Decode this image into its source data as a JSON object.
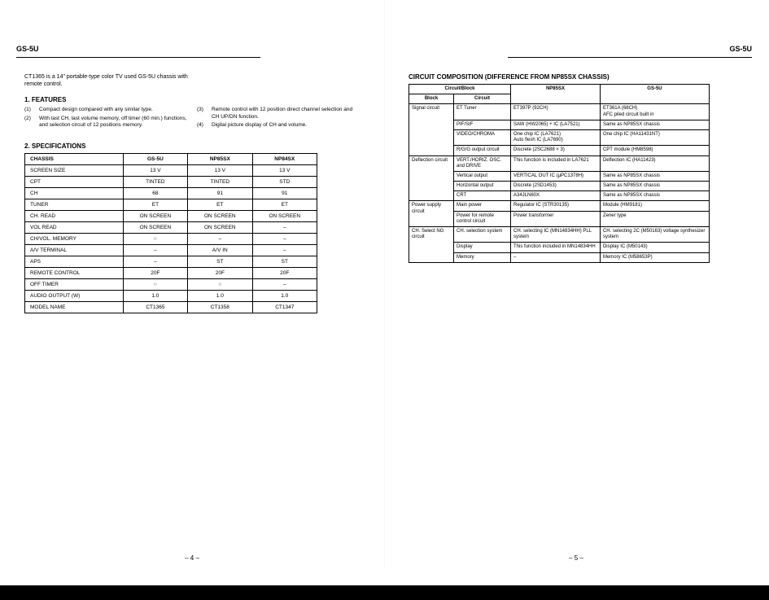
{
  "header": {
    "model": "GS-5U"
  },
  "left": {
    "intro": "CT1365 is a 14\" portable-type color TV used GS-5U chassis with remote control.",
    "features_title": "1. FEATURES",
    "features_left": [
      {
        "n": "(1)",
        "t": "Compact design compared with any similar type."
      },
      {
        "n": "(2)",
        "t": "With last CH, last volume memory, off timer (60 min.) functions, and selection circuit of 12 positions memory."
      }
    ],
    "features_right": [
      {
        "n": "(3)",
        "t": "Remote control with 12 position direct channel selection and CH UP/DN function."
      },
      {
        "n": "(4)",
        "t": "Digital picture display of CH and volume."
      }
    ],
    "specs_title": "2. SPECIFICATIONS",
    "spec_headers": [
      "CHASSIS",
      "GS-5U",
      "NP85SX",
      "NP84SX"
    ],
    "spec_rows": [
      [
        "SCREEN SIZE",
        "13 V",
        "13 V",
        "13 V"
      ],
      [
        "CPT",
        "TINTED",
        "TINTED",
        "STD"
      ],
      [
        "CH",
        "68",
        "91",
        "91"
      ],
      [
        "TUNER",
        "ET",
        "ET",
        "ET"
      ],
      [
        "CH. READ",
        "ON SCREEN",
        "ON SCREEN",
        "ON SCREEN"
      ],
      [
        "VOL READ",
        "ON SCREEN",
        "ON SCREEN",
        "–"
      ],
      [
        "CH/VOL. MEMORY",
        "○",
        "–",
        "–"
      ],
      [
        "A/V TERMINAL",
        "–",
        "A/V IN",
        "–"
      ],
      [
        "APS",
        "–",
        "ST",
        "ST"
      ],
      [
        "REMOTE CONTROL",
        "20F",
        "20F",
        "20F"
      ],
      [
        "OFF TIMER",
        "○",
        "○",
        "–"
      ],
      [
        "AUDIO OUTPUT (W)",
        "1.0",
        "1.0",
        "1.0"
      ],
      [
        "MODEL NAME",
        "CT1365",
        "CT1358",
        "CT1347"
      ]
    ],
    "page_num": "– 4 –"
  },
  "right": {
    "title": "CIRCUIT COMPOSITION (DIFFERENCE FROM NP85SX CHASSIS)",
    "head_top": [
      "Circuit/Block",
      "NP85SX",
      "GS-5U"
    ],
    "head_sub": [
      "Block",
      "Circuit"
    ],
    "rows": [
      {
        "block": "Signal circuit",
        "block_rowspan": 4,
        "cells": [
          "ET Tuner",
          "ET397P (92CH)",
          "ET361A (68CH)\nAFC piled circuit built in"
        ]
      },
      {
        "cells": [
          "PIF/SIF",
          "SAW (HW2065) + IC (LA7521)",
          "Same as NP85SX chassis"
        ]
      },
      {
        "cells": [
          "VIDEO/CHROMA",
          "One chip IC (LA7621)\nAuto flesh IC (LA7690)",
          "One chip IC (HA11431NT)"
        ]
      },
      {
        "cells": [
          "R/G/G output circuit",
          "Discrete (2SC2688 × 3)",
          "CPT module (HM8598)"
        ]
      },
      {
        "block": "Deflection circuit",
        "block_rowspan": 4,
        "cells": [
          "VERT./HORIZ. OSC. and DRIVE",
          "This function is included in LA7621",
          "Deflection IC (HA11423)"
        ]
      },
      {
        "cells": [
          "Vertical output",
          "VERTICAL OUT IC (μPC1378H)",
          "Same as NP85SX chassis"
        ]
      },
      {
        "cells": [
          "Horizontal output",
          "Discrete (2SD1453)",
          "Same as NP85SX chassis"
        ]
      },
      {
        "cells": [
          "CRT",
          "A34JLN60X",
          "Same as NP85SX chassis"
        ]
      },
      {
        "block": "Power supply circuit",
        "block_rowspan": 2,
        "cells": [
          "Main power",
          "Regulator IC (STR30135)",
          "Module (HM9181)"
        ]
      },
      {
        "cells": [
          "Power for remote control circuit",
          "Power transformer",
          "Zener type"
        ]
      },
      {
        "block": "CH. Select NG circuit",
        "block_rowspan": 3,
        "cells": [
          "CH. selection system",
          "CH. selecting IC (MN14834HH) PLL system",
          "CH. selecting 2C (M50163) voltage synthesizer system"
        ]
      },
      {
        "cells": [
          "Display",
          "This function included in MN14834HH",
          "Display IC (M50143)"
        ]
      },
      {
        "cells": [
          "Memory",
          "–",
          "Memory IC (M58653P)"
        ]
      }
    ],
    "page_num": "– 5 –"
  }
}
